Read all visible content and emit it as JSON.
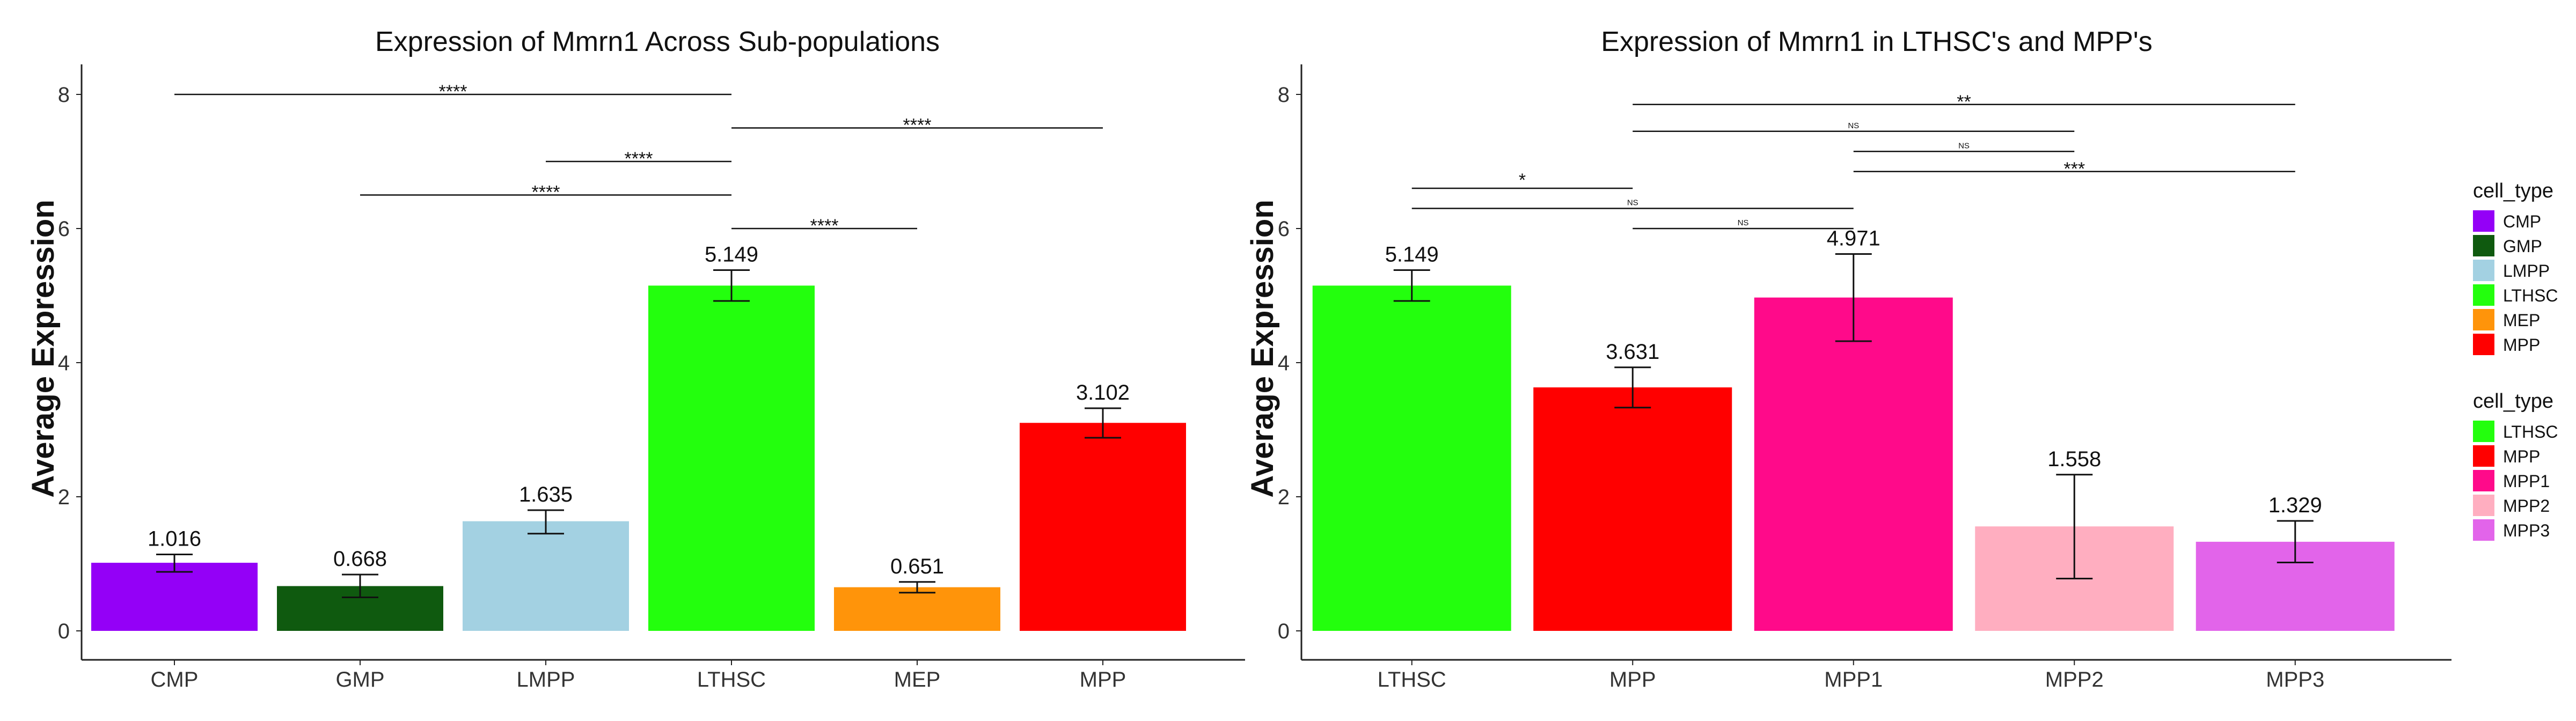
{
  "chart_data": [
    {
      "type": "bar",
      "title": "Expression of Mmrn1 Across Sub-populations",
      "xlabel": "",
      "ylabel": "Average Expression",
      "ylim": [
        0,
        8
      ],
      "yticks": [
        "0",
        "2",
        "4",
        "6",
        "8"
      ],
      "categories": [
        "CMP",
        "GMP",
        "LMPP",
        "LTHSC",
        "MEP",
        "MPP"
      ],
      "values": [
        1.016,
        0.668,
        1.635,
        5.149,
        0.651,
        3.102
      ],
      "value_labels": [
        "1.016",
        "0.668",
        "1.635",
        "5.149",
        "0.651",
        "3.102"
      ],
      "error_low": [
        0.88,
        0.5,
        1.45,
        4.92,
        0.57,
        2.88
      ],
      "error_high": [
        1.14,
        0.84,
        1.8,
        5.38,
        0.73,
        3.32
      ],
      "colors": [
        "#9400F7",
        "#0F5A0F",
        "#A3D1E2",
        "#23FF0D",
        "#FF940A",
        "#FF0000"
      ],
      "grid": false,
      "significance": [
        {
          "from": "CMP",
          "to": "LTHSC",
          "y": 8.0,
          "label": "****"
        },
        {
          "from": "LTHSC",
          "to": "MPP",
          "y": 7.5,
          "label": "****"
        },
        {
          "from": "LMPP",
          "to": "LTHSC",
          "y": 7.0,
          "label": "****"
        },
        {
          "from": "GMP",
          "to": "LTHSC",
          "y": 6.5,
          "label": "****"
        },
        {
          "from": "LTHSC",
          "to": "MEP",
          "y": 6.0,
          "label": "****"
        }
      ]
    },
    {
      "type": "bar",
      "title": "Expression of Mmrn1 in LTHSC's and MPP's",
      "xlabel": "",
      "ylabel": "Average Expression",
      "ylim": [
        0,
        8
      ],
      "yticks": [
        "0",
        "2",
        "4",
        "6",
        "8"
      ],
      "categories": [
        "LTHSC",
        "MPP",
        "MPP1",
        "MPP2",
        "MPP3"
      ],
      "values": [
        5.149,
        3.631,
        4.971,
        1.558,
        1.329
      ],
      "value_labels": [
        "5.149",
        "3.631",
        "4.971",
        "1.558",
        "1.329"
      ],
      "error_low": [
        4.92,
        3.33,
        4.32,
        0.78,
        1.02
      ],
      "error_high": [
        5.38,
        3.93,
        5.62,
        2.33,
        1.64
      ],
      "colors": [
        "#23FF0D",
        "#FF0000",
        "#FF0A8A",
        "#FFAEC0",
        "#E264EA"
      ],
      "grid": false,
      "significance": [
        {
          "from": "MPP",
          "to": "MPP3",
          "y": 7.85,
          "label": "**"
        },
        {
          "from": "MPP",
          "to": "MPP2",
          "y": 7.45,
          "label": "NS"
        },
        {
          "from": "MPP1",
          "to": "MPP2",
          "y": 7.15,
          "label": "NS"
        },
        {
          "from": "MPP1",
          "to": "MPP3",
          "y": 6.85,
          "label": "***"
        },
        {
          "from": "LTHSC",
          "to": "MPP",
          "y": 6.6,
          "label": "*"
        },
        {
          "from": "LTHSC",
          "to": "MPP1",
          "y": 6.3,
          "label": "NS"
        },
        {
          "from": "MPP",
          "to": "MPP1",
          "y": 6.0,
          "label": "NS"
        }
      ]
    }
  ],
  "legends": [
    {
      "title": "cell_type",
      "items": [
        {
          "label": "CMP",
          "color": "#9400F7"
        },
        {
          "label": "GMP",
          "color": "#0F5A0F"
        },
        {
          "label": "LMPP",
          "color": "#A3D1E2"
        },
        {
          "label": "LTHSC",
          "color": "#23FF0D"
        },
        {
          "label": "MEP",
          "color": "#FF940A"
        },
        {
          "label": "MPP",
          "color": "#FF0000"
        }
      ]
    },
    {
      "title": "cell_type",
      "items": [
        {
          "label": "LTHSC",
          "color": "#23FF0D"
        },
        {
          "label": "MPP",
          "color": "#FF0000"
        },
        {
          "label": "MPP1",
          "color": "#FF0A8A"
        },
        {
          "label": "MPP2",
          "color": "#FFAEC0"
        },
        {
          "label": "MPP3",
          "color": "#E264EA"
        }
      ]
    }
  ]
}
